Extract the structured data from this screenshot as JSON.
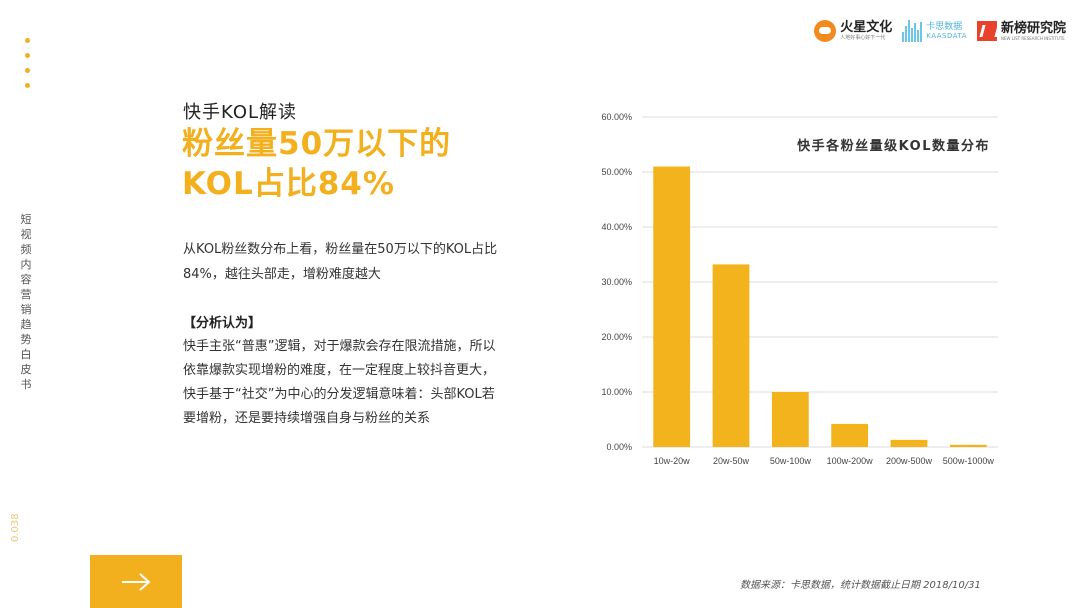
{
  "rail": {
    "vertical_title": "短视频内容营销趋势白皮书",
    "page_number": "0.038"
  },
  "logos": {
    "fire": {
      "name": "火星文化",
      "tagline": "人地好事心好下一代"
    },
    "kaas": {
      "name": "卡思数据",
      "tagline": "KAASDATA"
    },
    "xinbang": {
      "name": "新榜研究院",
      "tagline": "NEW LIST RESEARCH INSTITUTE"
    }
  },
  "content": {
    "subtitle": "快手KOL解读",
    "headline": "粉丝量50万以下的KOL占比84%",
    "intro": "从KOL粉丝数分布上看，粉丝量在50万以下的KOL占比84%，越往头部走，增粉难度越大",
    "analysis_heading": "【分析认为】",
    "analysis_body": "快手主张“普惠”逻辑，对于爆款会存在限流措施，所以依靠爆款实现增粉的难度，在一定程度上较抖音更大，快手基于“社交”为中心的分发逻辑意味着：头部KOL若要增粉，还是要持续增强自身与粉丝的关系"
  },
  "source": "数据来源：卡思数据，统计数据截止日期 2018/10/31",
  "colors": {
    "accent": "#f2b01e",
    "bar": "#f2b31c"
  },
  "icons": {
    "next": "arrow-right-icon"
  },
  "chart_data": {
    "type": "bar",
    "title": "快手各粉丝量级KOL数量分布",
    "categories": [
      "10w-20w",
      "20w-50w",
      "50w-100w",
      "100w-200w",
      "200w-500w",
      "500w-1000w"
    ],
    "values": [
      51.0,
      33.2,
      10.0,
      4.2,
      1.3,
      0.4
    ],
    "ylim": [
      0,
      60
    ],
    "yticks": [
      "0.00%",
      "10.00%",
      "20.00%",
      "30.00%",
      "40.00%",
      "50.00%",
      "60.00%"
    ],
    "ytick_values": [
      0,
      10,
      20,
      30,
      40,
      50,
      60
    ],
    "grid": true,
    "legend": "none"
  }
}
